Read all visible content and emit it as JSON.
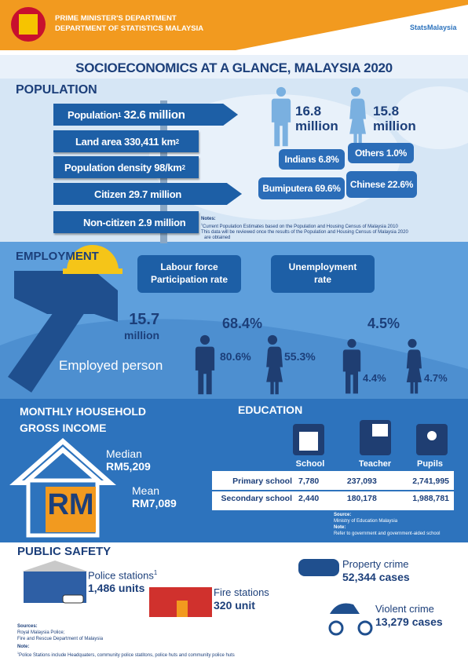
{
  "header": {
    "department_lines": [
      "PRIME MINISTER'S DEPARTMENT",
      "DEPARTMENT OF STATISTICS MALAYSIA"
    ],
    "brand": "StatsMalaysia",
    "title": "SOCIOECONOMICS AT A GLANCE, MALAYSIA 2020"
  },
  "population": {
    "heading": "POPULATION",
    "signs": [
      {
        "label": "Population",
        "label_sup": "1",
        "value": "32.6 million"
      },
      {
        "label": "Land area",
        "value": "330,411 km",
        "value_sup": "2"
      },
      {
        "label": "Population density",
        "value": "98/km",
        "value_sup": "2"
      },
      {
        "label": "Citizen",
        "value": "29.7 million"
      },
      {
        "label": "Non-citizen",
        "value": "2.9 million"
      }
    ],
    "male": {
      "value": "16.8",
      "unit": "million"
    },
    "female": {
      "value": "15.8",
      "unit": "million"
    },
    "ethnic": [
      {
        "name": "Indians",
        "value": "6.8%"
      },
      {
        "name": "Others",
        "value": "1.0%"
      },
      {
        "name": "Bumiputera",
        "value": "69.6%"
      },
      {
        "name": "Chinese",
        "value": "22.6%"
      }
    ],
    "notes": {
      "title": "Notes:",
      "sup": "1",
      "lines": [
        "Current Population Estimates based on the Population and Housing Census of Malaysia 2010",
        "This data will be reviewed once the results of the Population and Housing Census of Malaysia 2020",
        "are obtained"
      ]
    }
  },
  "employment": {
    "heading": "EMPLOYMENT",
    "employed": {
      "value": "15.7",
      "unit": "million",
      "label": "Employed person"
    },
    "participation": {
      "title_lines": [
        "Labour force",
        "Participation rate"
      ],
      "value": "68.4%",
      "male": "80.6%",
      "female": "55.3%"
    },
    "unemployment": {
      "title_lines": [
        "Unemployment",
        "rate"
      ],
      "value": "4.5%",
      "male": "4.4%",
      "female": "4.7%"
    }
  },
  "income": {
    "heading_lines": [
      "MONTHLY HOUSEHOLD",
      "GROSS INCOME"
    ],
    "median": {
      "label": "Median",
      "value": "RM5,209"
    },
    "mean": {
      "label": "Mean",
      "value": "RM7,089"
    },
    "icon_text": "RM"
  },
  "education": {
    "heading": "EDUCATION",
    "columns": [
      "School",
      "Teacher",
      "Pupils"
    ],
    "rows": [
      [
        "Primary school",
        "7,780",
        "237,093",
        "2,741,995"
      ],
      [
        "Secondary school",
        "2,440",
        "180,178",
        "1,988,781"
      ]
    ],
    "source_title": "Source:",
    "source": "Ministry of Education Malaysia",
    "note_title": "Note:",
    "note": "Refer to government and government-aided school"
  },
  "safety": {
    "heading": "PUBLIC SAFETY",
    "police": {
      "label": "Police stations",
      "sup": "1",
      "value": "1,486 units"
    },
    "fire": {
      "label": "Fire stations",
      "value": "320 unit"
    },
    "property": {
      "label": "Property crime",
      "value": "52,344 cases"
    },
    "violent": {
      "label": "Violent crime",
      "value": "13,279 cases"
    },
    "sources_title": "Sources:",
    "sources": [
      "Royal Malaysia Police;",
      "Fire and Rescue Department of Malaysia"
    ],
    "note_title": "Note:",
    "note_sup": "1",
    "note": "Police Stations include Headquaters, community police statitons, police huts and community police huts"
  }
}
